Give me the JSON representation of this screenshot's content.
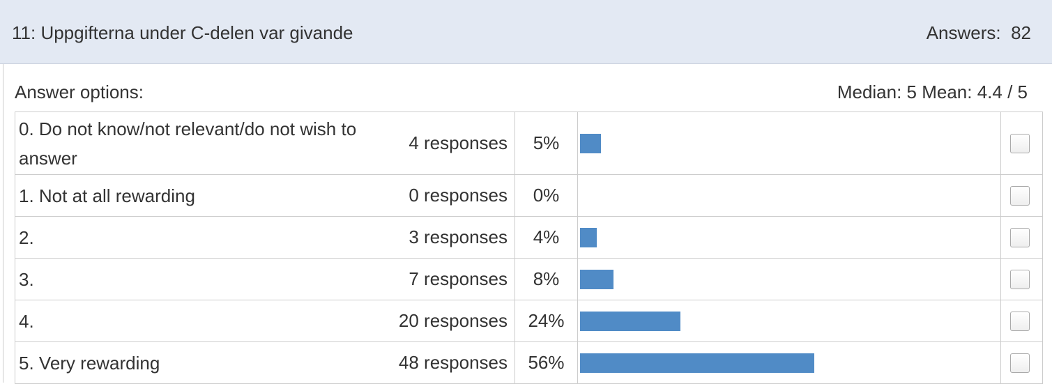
{
  "header": {
    "title": "11:  Uppgifterna under C-delen var givande",
    "answers_label": "Answers:",
    "answers_count": "82"
  },
  "summary": {
    "label": "Answer options:",
    "stats": "Median: 5 Mean: 4.4 / 5"
  },
  "rows": [
    {
      "label": "0.  Do not know/not relevant/do not wish to answer",
      "responses": "4 responses",
      "percent": 5,
      "percent_label": "5%"
    },
    {
      "label": "1.  Not at all rewarding",
      "responses": "0 responses",
      "percent": 0,
      "percent_label": "0%"
    },
    {
      "label": "2.",
      "responses": "3 responses",
      "percent": 4,
      "percent_label": "4%"
    },
    {
      "label": "3.",
      "responses": "7 responses",
      "percent": 8,
      "percent_label": "8%"
    },
    {
      "label": "4.",
      "responses": "20 responses",
      "percent": 24,
      "percent_label": "24%"
    },
    {
      "label": "5.  Very rewarding",
      "responses": "48 responses",
      "percent": 56,
      "percent_label": "56%"
    }
  ]
}
